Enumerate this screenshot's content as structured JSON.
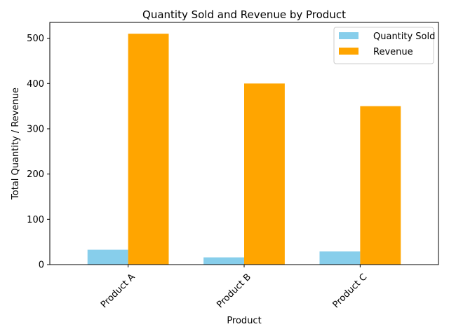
{
  "chart_data": {
    "type": "bar",
    "title": "Quantity Sold and Revenue by Product",
    "xlabel": "Product",
    "ylabel": "Total Quantity / Revenue",
    "categories": [
      "Product A",
      "Product B",
      "Product C"
    ],
    "series": [
      {
        "name": "Quantity Sold",
        "values": [
          33,
          16,
          29
        ],
        "color": "#87ceeb"
      },
      {
        "name": "Revenue",
        "values": [
          510,
          400,
          350
        ],
        "color": "#ffa500"
      }
    ],
    "ylim": [
      0,
      535
    ],
    "yticks": [
      0,
      100,
      200,
      300,
      400,
      500
    ],
    "grid": false,
    "legend": "top-right"
  }
}
